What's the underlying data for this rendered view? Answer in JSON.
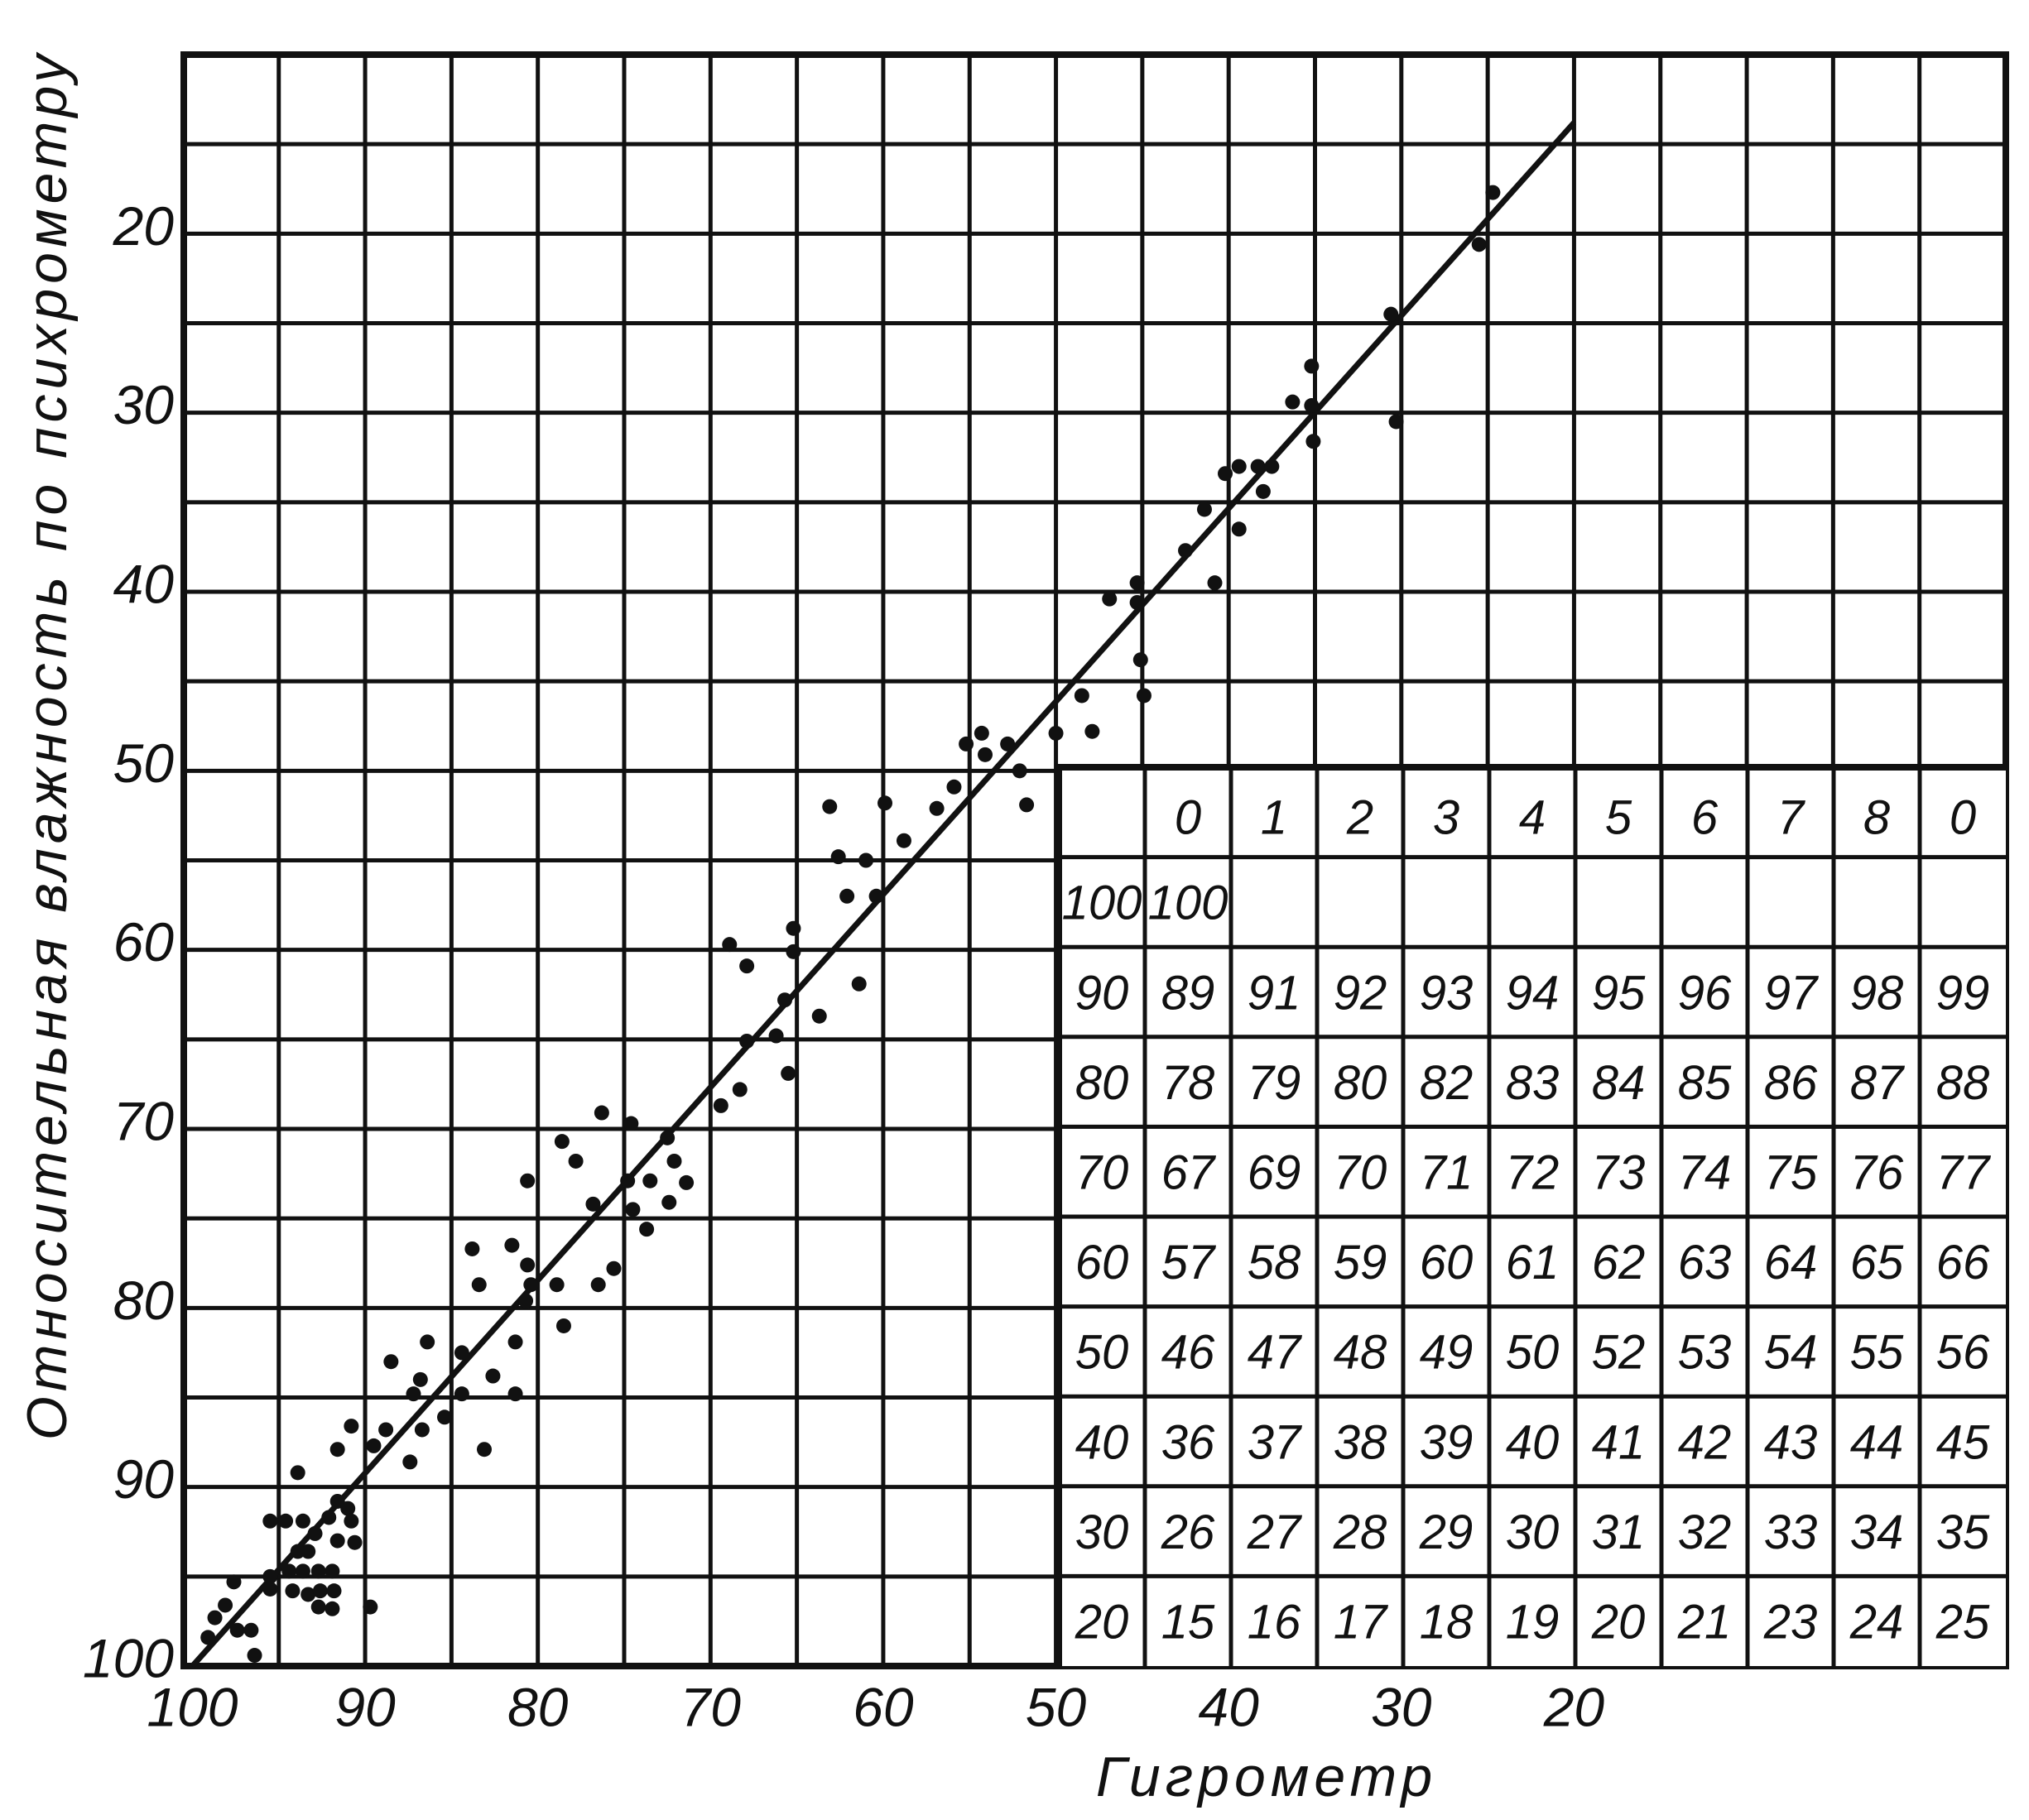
{
  "chart_data": {
    "type": "scatter",
    "xlabel": "Гигрометр",
    "ylabel": "Относительная влажность по психрометру",
    "xlim": [
      100.5,
      -5
    ],
    "ylim": [
      100,
      10
    ],
    "xticks": [
      100,
      90,
      80,
      70,
      60,
      50,
      40,
      30,
      20
    ],
    "yticks": [
      20,
      30,
      40,
      50,
      60,
      70,
      80,
      90,
      100
    ],
    "xgrid": [
      95,
      90,
      85,
      80,
      75,
      70,
      65,
      60,
      55,
      50,
      45,
      40,
      35,
      30,
      25,
      20,
      15,
      10,
      5,
      0
    ],
    "ygrid": [
      15,
      20,
      25,
      30,
      35,
      40,
      45,
      50,
      55,
      60,
      65,
      70,
      75,
      80,
      85,
      90,
      95
    ],
    "grid": true,
    "color": "#111111",
    "fit_line": {
      "x": [
        100,
        20
      ],
      "y": [
        100,
        13.8
      ]
    },
    "x": [
      24.7,
      25.5,
      30.6,
      30.3,
      35.2,
      35.2,
      36.3,
      35.1,
      39.4,
      38.3,
      37.5,
      38.0,
      40.2,
      41.4,
      39.4,
      42.5,
      40.8,
      45.3,
      45.3,
      46.9,
      45.1,
      44.9,
      48.5,
      47.9,
      50.0,
      54.3,
      55.2,
      54.1,
      52.8,
      52.1,
      51.7,
      55.9,
      56.9,
      58.8,
      59.9,
      63.1,
      62.6,
      61.0,
      62.1,
      60.4,
      65.2,
      65.2,
      61.4,
      68.9,
      67.9,
      65.7,
      63.7,
      66.2,
      67.9,
      65.5,
      68.3,
      69.4,
      74.6,
      76.3,
      72.5,
      72.1,
      71.4,
      72.4,
      74.8,
      73.5,
      74.5,
      73.7,
      78.6,
      77.8,
      76.8,
      75.6,
      76.5,
      80.6,
      83.8,
      83.4,
      81.5,
      80.6,
      80.4,
      80.7,
      78.9,
      78.5,
      81.3,
      81.3,
      86.4,
      84.4,
      88.5,
      86.8,
      87.2,
      82.6,
      84.4,
      85.4,
      86.7,
      87.4,
      83.1,
      90.8,
      88.8,
      89.5,
      91.6,
      91.6,
      92.1,
      91.0,
      90.8,
      90.6,
      91.6,
      93.9,
      95.5,
      94.6,
      93.6,
      92.9,
      93.3,
      93.9,
      94.4,
      93.6,
      92.7,
      91.9,
      94.2,
      93.3,
      92.6,
      91.8,
      92.7,
      91.9,
      89.7,
      95.5,
      95.5,
      97.6,
      98.1,
      98.7,
      99.1,
      97.4,
      96.6,
      96.4
    ],
    "y": [
      17.7,
      20.6,
      24.5,
      30.5,
      27.4,
      29.6,
      29.4,
      31.6,
      33.0,
      33.0,
      33.0,
      34.4,
      33.4,
      35.4,
      36.5,
      37.7,
      39.5,
      39.5,
      40.6,
      40.4,
      43.8,
      45.8,
      45.8,
      47.8,
      47.9,
      47.9,
      48.5,
      49.1,
      48.5,
      50.0,
      51.9,
      50.9,
      52.1,
      53.9,
      51.8,
      52.0,
      54.8,
      55.0,
      57.0,
      57.0,
      58.8,
      60.1,
      61.9,
      59.7,
      60.9,
      62.8,
      63.7,
      64.8,
      65.1,
      66.9,
      67.8,
      68.7,
      69.7,
      69.1,
      70.5,
      71.8,
      73.0,
      74.1,
      72.9,
      72.9,
      74.5,
      75.6,
      70.7,
      71.8,
      74.2,
      77.8,
      78.7,
      72.9,
      76.7,
      78.7,
      76.5,
      77.6,
      78.7,
      79.6,
      78.7,
      81.0,
      81.9,
      84.8,
      81.9,
      82.5,
      83.0,
      84.0,
      84.8,
      83.8,
      84.8,
      86.1,
      86.8,
      88.6,
      87.9,
      86.6,
      86.8,
      87.7,
      87.9,
      90.8,
      91.7,
      91.2,
      91.9,
      93.1,
      93.0,
      89.2,
      91.9,
      91.9,
      91.9,
      92.6,
      93.6,
      93.6,
      94.7,
      94.7,
      94.7,
      94.7,
      95.8,
      96.0,
      95.8,
      95.8,
      96.7,
      96.8,
      96.7,
      95.0,
      95.7,
      95.3,
      96.6,
      97.3,
      98.4,
      98.0,
      98.0,
      99.4
    ]
  },
  "table": {
    "columns": [
      0,
      1,
      2,
      3,
      4,
      5,
      6,
      7,
      8,
      0
    ],
    "rows": [
      {
        "label": 100,
        "values": [
          100
        ]
      },
      {
        "label": 90,
        "values": [
          89,
          91,
          92,
          93,
          94,
          95,
          96,
          97,
          98,
          99
        ]
      },
      {
        "label": 80,
        "values": [
          78,
          79,
          80,
          82,
          83,
          84,
          85,
          86,
          87,
          88
        ]
      },
      {
        "label": 70,
        "values": [
          67,
          69,
          70,
          71,
          72,
          73,
          74,
          75,
          76,
          77
        ]
      },
      {
        "label": 60,
        "values": [
          57,
          58,
          59,
          60,
          61,
          62,
          63,
          64,
          65,
          66
        ]
      },
      {
        "label": 50,
        "values": [
          46,
          47,
          48,
          49,
          50,
          52,
          53,
          54,
          55,
          56
        ]
      },
      {
        "label": 40,
        "values": [
          36,
          37,
          38,
          39,
          40,
          41,
          42,
          43,
          44,
          45
        ]
      },
      {
        "label": 30,
        "values": [
          26,
          27,
          28,
          29,
          30,
          31,
          32,
          33,
          34,
          35
        ]
      },
      {
        "label": 20,
        "values": [
          15,
          16,
          17,
          18,
          19,
          20,
          21,
          23,
          24,
          25
        ]
      }
    ]
  }
}
